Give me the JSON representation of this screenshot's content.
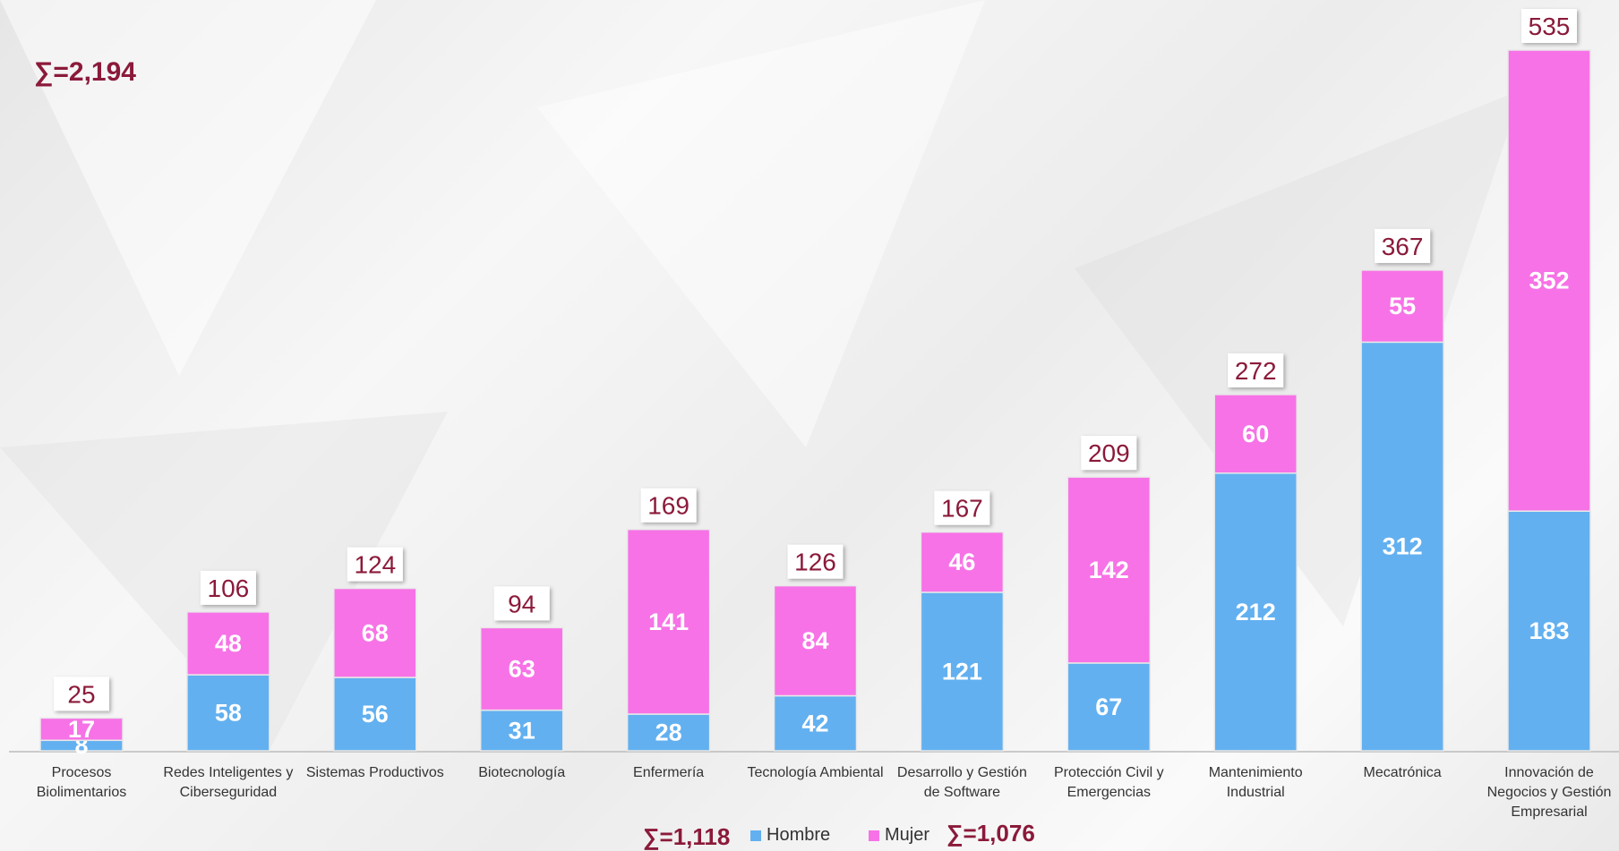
{
  "chart_data": {
    "type": "stacked_bar",
    "categories": [
      "Procesos Biolimentarios",
      "Redes Inteligentes y Ciberseguridad",
      "Sistemas Productivos",
      "Biotecnología",
      "Enfermería",
      "Tecnología Ambiental",
      "Desarrollo y Gestión de Software",
      "Protección Civil y Emergencias",
      "Mantenimiento Industrial",
      "Mecatrónica",
      "Innovación de Negocios y Gestión Empresarial"
    ],
    "series": [
      {
        "name": "Hombre",
        "color": "#62b0f0",
        "values": [
          8,
          58,
          56,
          31,
          28,
          42,
          121,
          67,
          212,
          312,
          183
        ]
      },
      {
        "name": "Mujer",
        "color": "#f772e6",
        "values": [
          17,
          48,
          68,
          63,
          141,
          84,
          46,
          142,
          60,
          55,
          352
        ]
      }
    ],
    "totals": [
      25,
      106,
      124,
      94,
      169,
      126,
      167,
      209,
      272,
      367,
      535
    ],
    "annotations": {
      "total": "∑=2,194",
      "hombre_total": "∑=1,118",
      "mujer_total": "∑=1,076"
    }
  }
}
